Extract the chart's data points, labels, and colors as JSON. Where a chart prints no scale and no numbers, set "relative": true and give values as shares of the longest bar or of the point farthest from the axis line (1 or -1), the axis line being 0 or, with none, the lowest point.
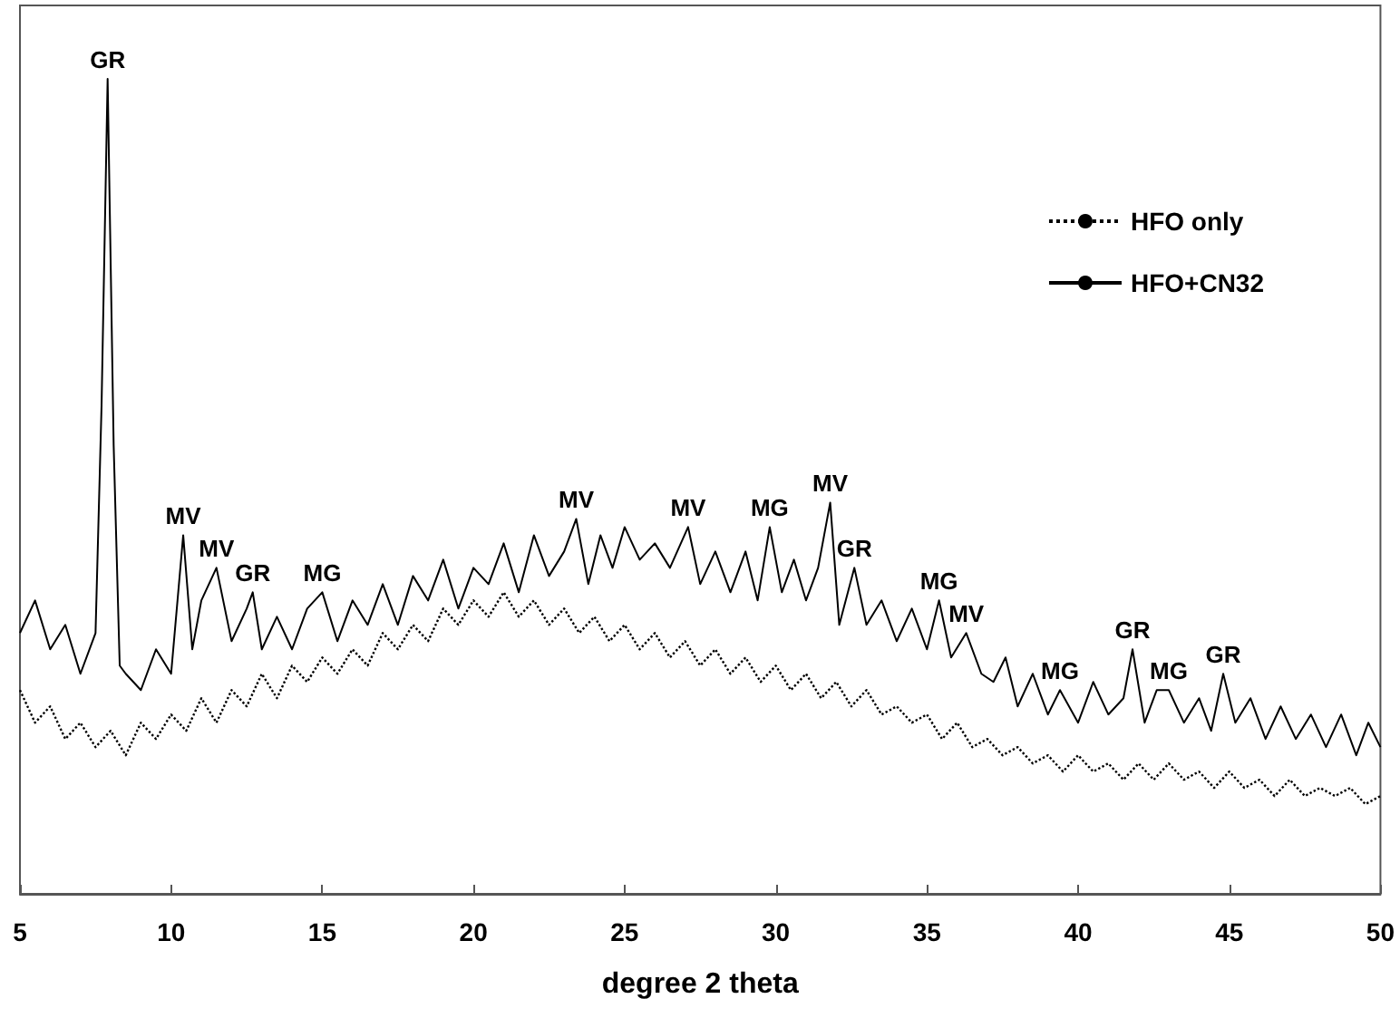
{
  "chart_data": {
    "type": "line",
    "xlabel": "degree 2 theta",
    "relative": true,
    "xlim": [
      5,
      50
    ],
    "xticks": [
      5,
      10,
      15,
      20,
      25,
      30,
      35,
      40,
      45,
      50
    ],
    "tick_labels": "x",
    "grid": false,
    "legend": "top right",
    "marker": "none",
    "series": [
      {
        "name": "HFO only",
        "color": "#000000",
        "line_style": "dotted",
        "x": [
          5,
          5.5,
          6,
          6.5,
          7,
          7.5,
          8,
          8.5,
          9,
          9.5,
          10,
          10.5,
          11,
          11.5,
          12,
          12.5,
          13,
          13.5,
          14,
          14.5,
          15,
          15.5,
          16,
          16.5,
          17,
          17.5,
          18,
          18.5,
          19,
          19.5,
          20,
          20.5,
          21,
          21.5,
          22,
          22.5,
          23,
          23.5,
          24,
          24.5,
          25,
          25.5,
          26,
          26.5,
          27,
          27.5,
          28,
          28.5,
          29,
          29.5,
          30,
          30.5,
          31,
          31.5,
          32,
          32.5,
          33,
          33.5,
          34,
          34.5,
          35,
          35.5,
          36,
          36.5,
          37,
          37.5,
          38,
          38.5,
          39,
          39.5,
          40,
          40.5,
          41,
          41.5,
          42,
          42.5,
          43,
          43.5,
          44,
          44.5,
          45,
          45.5,
          46,
          46.5,
          47,
          47.5,
          48,
          48.5,
          49,
          49.5,
          50
        ],
        "values": [
          0.25,
          0.21,
          0.23,
          0.19,
          0.21,
          0.18,
          0.2,
          0.17,
          0.21,
          0.19,
          0.22,
          0.2,
          0.24,
          0.21,
          0.25,
          0.23,
          0.27,
          0.24,
          0.28,
          0.26,
          0.29,
          0.27,
          0.3,
          0.28,
          0.32,
          0.3,
          0.33,
          0.31,
          0.35,
          0.33,
          0.36,
          0.34,
          0.37,
          0.34,
          0.36,
          0.33,
          0.35,
          0.32,
          0.34,
          0.31,
          0.33,
          0.3,
          0.32,
          0.29,
          0.31,
          0.28,
          0.3,
          0.27,
          0.29,
          0.26,
          0.28,
          0.25,
          0.27,
          0.24,
          0.26,
          0.23,
          0.25,
          0.22,
          0.23,
          0.21,
          0.22,
          0.19,
          0.21,
          0.18,
          0.19,
          0.17,
          0.18,
          0.16,
          0.17,
          0.15,
          0.17,
          0.15,
          0.16,
          0.14,
          0.16,
          0.14,
          0.16,
          0.14,
          0.15,
          0.13,
          0.15,
          0.13,
          0.14,
          0.12,
          0.14,
          0.12,
          0.13,
          0.12,
          0.13,
          0.11,
          0.12
        ]
      },
      {
        "name": "HFO+CN32",
        "color": "#000000",
        "line_style": "solid",
        "x": [
          5,
          5.5,
          6,
          6.5,
          7,
          7.5,
          7.7,
          7.9,
          8.1,
          8.3,
          8.5,
          9,
          9.5,
          10,
          10.4,
          10.7,
          11,
          11.5,
          12,
          12.5,
          12.7,
          13,
          13.5,
          14,
          14.5,
          15,
          15.5,
          16,
          16.5,
          17,
          17.5,
          18,
          18.5,
          19,
          19.5,
          20,
          20.5,
          21,
          21.5,
          22,
          22.5,
          23,
          23.4,
          23.8,
          24.2,
          24.6,
          25,
          25.5,
          26,
          26.5,
          27.1,
          27.5,
          28,
          28.5,
          29,
          29.4,
          29.8,
          30.2,
          30.6,
          31,
          31.4,
          31.8,
          32.1,
          32.6,
          33,
          33.5,
          34,
          34.5,
          35,
          35.4,
          35.8,
          36.3,
          36.8,
          37.2,
          37.6,
          38,
          38.5,
          39,
          39.4,
          40,
          40.5,
          41,
          41.5,
          41.8,
          42.2,
          42.6,
          43,
          43.5,
          44,
          44.4,
          44.8,
          45.2,
          45.7,
          46.2,
          46.7,
          47.2,
          47.7,
          48.2,
          48.7,
          49.2,
          49.6,
          50
        ],
        "values": [
          0.32,
          0.36,
          0.3,
          0.33,
          0.27,
          0.32,
          0.6,
          1.0,
          0.55,
          0.28,
          0.27,
          0.25,
          0.3,
          0.27,
          0.44,
          0.3,
          0.36,
          0.4,
          0.31,
          0.35,
          0.37,
          0.3,
          0.34,
          0.3,
          0.35,
          0.37,
          0.31,
          0.36,
          0.33,
          0.38,
          0.33,
          0.39,
          0.36,
          0.41,
          0.35,
          0.4,
          0.38,
          0.43,
          0.37,
          0.44,
          0.39,
          0.42,
          0.46,
          0.38,
          0.44,
          0.4,
          0.45,
          0.41,
          0.43,
          0.4,
          0.45,
          0.38,
          0.42,
          0.37,
          0.42,
          0.36,
          0.45,
          0.37,
          0.41,
          0.36,
          0.4,
          0.48,
          0.33,
          0.4,
          0.33,
          0.36,
          0.31,
          0.35,
          0.3,
          0.36,
          0.29,
          0.32,
          0.27,
          0.26,
          0.29,
          0.23,
          0.27,
          0.22,
          0.25,
          0.21,
          0.26,
          0.22,
          0.24,
          0.3,
          0.21,
          0.25,
          0.25,
          0.21,
          0.24,
          0.2,
          0.27,
          0.21,
          0.24,
          0.19,
          0.23,
          0.19,
          0.22,
          0.18,
          0.22,
          0.17,
          0.21,
          0.18
        ]
      }
    ],
    "annotations": [
      {
        "text": "GR",
        "x": 7.9,
        "y": 1.0
      },
      {
        "text": "MV",
        "x": 10.4,
        "y": 0.44
      },
      {
        "text": "MV",
        "x": 11.5,
        "y": 0.4
      },
      {
        "text": "GR",
        "x": 12.7,
        "y": 0.37
      },
      {
        "text": "MG",
        "x": 15,
        "y": 0.37
      },
      {
        "text": "MV",
        "x": 23.4,
        "y": 0.46
      },
      {
        "text": "MV",
        "x": 27.1,
        "y": 0.45
      },
      {
        "text": "MG",
        "x": 29.8,
        "y": 0.45
      },
      {
        "text": "MV",
        "x": 31.8,
        "y": 0.48
      },
      {
        "text": "GR",
        "x": 32.6,
        "y": 0.4
      },
      {
        "text": "MG",
        "x": 35.4,
        "y": 0.36
      },
      {
        "text": "MV",
        "x": 36.3,
        "y": 0.32
      },
      {
        "text": "MG",
        "x": 39.4,
        "y": 0.25
      },
      {
        "text": "GR",
        "x": 41.8,
        "y": 0.3
      },
      {
        "text": "MG",
        "x": 43,
        "y": 0.25
      },
      {
        "text": "GR",
        "x": 44.8,
        "y": 0.27
      }
    ]
  }
}
